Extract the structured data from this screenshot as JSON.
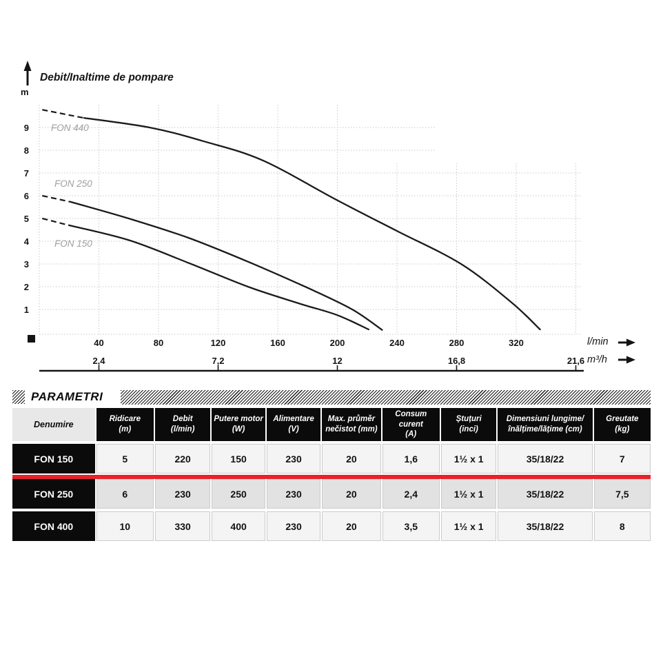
{
  "chart_data": {
    "type": "line",
    "title": "Debit/Inaltime de pompare",
    "grid": true,
    "y_axis": {
      "unit": "m",
      "min": 0,
      "max": 10,
      "ticks": [
        1,
        2,
        3,
        4,
        5,
        6,
        7,
        8,
        9
      ]
    },
    "x_axis_primary": {
      "unit": "l/min",
      "min": 0,
      "max": 364,
      "ticks": [
        40,
        80,
        120,
        160,
        200,
        240,
        280,
        320
      ]
    },
    "x_axis_secondary": {
      "unit": "m³/h",
      "ticks": [
        "2,4",
        "7,2",
        "12",
        "16,8",
        "21,6"
      ],
      "at_lmin": [
        40,
        120,
        200,
        280,
        360
      ]
    },
    "series": [
      {
        "name": "FON 440",
        "dashed_lead": [
          [
            2,
            9.78
          ],
          [
            30,
            9.42
          ]
        ],
        "points": [
          [
            30,
            9.42
          ],
          [
            74,
            9.0
          ],
          [
            110,
            8.4
          ],
          [
            150,
            7.55
          ],
          [
            200,
            5.8
          ],
          [
            240,
            4.45
          ],
          [
            283,
            3.0
          ],
          [
            317,
            1.3
          ],
          [
            336,
            0.12
          ]
        ]
      },
      {
        "name": "FON 250",
        "dashed_lead": [
          [
            2,
            6.0
          ],
          [
            21,
            5.73
          ]
        ],
        "points": [
          [
            21,
            5.73
          ],
          [
            60,
            5.0
          ],
          [
            100,
            4.15
          ],
          [
            140,
            3.1
          ],
          [
            180,
            1.95
          ],
          [
            210,
            1.0
          ],
          [
            230,
            0.1
          ]
        ]
      },
      {
        "name": "FON 150",
        "dashed_lead": [
          [
            2,
            5.0
          ],
          [
            20,
            4.7
          ]
        ],
        "points": [
          [
            20,
            4.7
          ],
          [
            60,
            4.05
          ],
          [
            100,
            3.05
          ],
          [
            140,
            2.0
          ],
          [
            174,
            1.27
          ],
          [
            200,
            0.75
          ],
          [
            221,
            0.12
          ]
        ]
      }
    ]
  },
  "table": {
    "section_title": "PARAMETRI",
    "columns": [
      {
        "l1": "Denumire",
        "l2": ""
      },
      {
        "l1": "Ridicare",
        "l2": "(m)"
      },
      {
        "l1": "Debit",
        "l2": "(l/min)"
      },
      {
        "l1": "Putere motor",
        "l2": "(W)"
      },
      {
        "l1": "Alimentare",
        "l2": "(V)"
      },
      {
        "l1": "Max. průměr",
        "l2": "nečistot (mm)"
      },
      {
        "l1": "Consum curent",
        "l2": "(A)"
      },
      {
        "l1": "Ștuțuri",
        "l2": "(inci)"
      },
      {
        "l1": "Dimensiuni lungime/",
        "l2": "înălțime/lățime (cm)"
      },
      {
        "l1": "Greutate",
        "l2": "(kg)"
      }
    ],
    "rows": [
      {
        "name": "FON 150",
        "values": [
          "5",
          "220",
          "150",
          "230",
          "20",
          "1,6",
          "1½ x 1",
          "35/18/22",
          "7"
        ]
      },
      {
        "name": "FON 250",
        "values": [
          "6",
          "230",
          "250",
          "230",
          "20",
          "2,4",
          "1½ x 1",
          "35/18/22",
          "7,5"
        ]
      },
      {
        "name": "FON 400",
        "values": [
          "10",
          "330",
          "400",
          "230",
          "20",
          "3,5",
          "1½ x 1",
          "35/18/22",
          "8"
        ]
      }
    ],
    "highlight_after_row": 0,
    "colors": {
      "header_bg": "#0b0b0b",
      "row_light": "#f4f4f4",
      "row_dark": "#e2e2e2",
      "denumire_bg": "#e8e8e8",
      "highlight": "#e8212b",
      "curve": "#1a1a1a",
      "grid": "#c8c8c8",
      "series_label": "#9f9f9f"
    }
  }
}
